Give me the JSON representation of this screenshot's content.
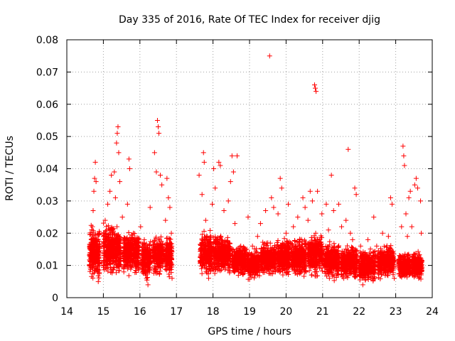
{
  "chart_data": {
    "type": "scatter",
    "title": "Day 335 of 2016, Rate Of TEC Index for receiver djig",
    "xlabel": "GPS time / hours",
    "ylabel": "ROTI / TECUs",
    "xlim": [
      14,
      24
    ],
    "ylim": [
      0,
      0.08
    ],
    "x_ticks": [
      "14",
      "15",
      "16",
      "17",
      "18",
      "19",
      "20",
      "21",
      "22",
      "23",
      "24"
    ],
    "y_ticks": [
      "0",
      "0.01",
      "0.02",
      "0.03",
      "0.04",
      "0.05",
      "0.06",
      "0.07",
      "0.08"
    ],
    "grid": true,
    "marker": "+",
    "color": "#ff0000",
    "series": [
      {
        "name": "ROTI",
        "points": [
          [
            14.62,
            0.01
          ],
          [
            14.65,
            0.014
          ],
          [
            14.68,
            0.018
          ],
          [
            14.7,
            0.022
          ],
          [
            14.72,
            0.027
          ],
          [
            14.74,
            0.033
          ],
          [
            14.76,
            0.037
          ],
          [
            14.78,
            0.042
          ],
          [
            14.8,
            0.036
          ],
          [
            14.82,
            0.012
          ],
          [
            14.84,
            0.008
          ],
          [
            14.86,
            0.005
          ],
          [
            14.88,
            0.016
          ],
          [
            14.9,
            0.02
          ],
          [
            14.95,
            0.011
          ],
          [
            15.0,
            0.019
          ],
          [
            15.05,
            0.024
          ],
          [
            15.08,
            0.009
          ],
          [
            15.12,
            0.029
          ],
          [
            15.15,
            0.015
          ],
          [
            15.18,
            0.033
          ],
          [
            15.22,
            0.038
          ],
          [
            15.26,
            0.021
          ],
          [
            15.3,
            0.039
          ],
          [
            15.33,
            0.031
          ],
          [
            15.36,
            0.048
          ],
          [
            15.38,
            0.051
          ],
          [
            15.4,
            0.053
          ],
          [
            15.42,
            0.045
          ],
          [
            15.45,
            0.036
          ],
          [
            15.48,
            0.012
          ],
          [
            15.52,
            0.025
          ],
          [
            15.56,
            0.008
          ],
          [
            15.62,
            0.018
          ],
          [
            15.66,
            0.029
          ],
          [
            15.7,
            0.043
          ],
          [
            15.72,
            0.04
          ],
          [
            15.76,
            0.014
          ],
          [
            15.82,
            0.02
          ],
          [
            15.88,
            0.01
          ],
          [
            15.95,
            0.016
          ],
          [
            16.02,
            0.022
          ],
          [
            16.08,
            0.013
          ],
          [
            16.12,
            0.018
          ],
          [
            16.18,
            0.006
          ],
          [
            16.22,
            0.004
          ],
          [
            16.28,
            0.028
          ],
          [
            16.35,
            0.014
          ],
          [
            16.4,
            0.045
          ],
          [
            16.45,
            0.039
          ],
          [
            16.48,
            0.055
          ],
          [
            16.5,
            0.053
          ],
          [
            16.52,
            0.051
          ],
          [
            16.56,
            0.038
          ],
          [
            16.6,
            0.035
          ],
          [
            16.64,
            0.012
          ],
          [
            16.7,
            0.024
          ],
          [
            16.74,
            0.037
          ],
          [
            16.78,
            0.031
          ],
          [
            16.82,
            0.028
          ],
          [
            16.86,
            0.02
          ],
          [
            16.88,
            0.006
          ],
          [
            17.62,
            0.038
          ],
          [
            17.66,
            0.015
          ],
          [
            17.7,
            0.032
          ],
          [
            17.74,
            0.045
          ],
          [
            17.76,
            0.042
          ],
          [
            17.8,
            0.024
          ],
          [
            17.84,
            0.019
          ],
          [
            17.88,
            0.006
          ],
          [
            17.92,
            0.015
          ],
          [
            17.98,
            0.029
          ],
          [
            18.02,
            0.04
          ],
          [
            18.06,
            0.034
          ],
          [
            18.1,
            0.018
          ],
          [
            18.16,
            0.042
          ],
          [
            18.2,
            0.041
          ],
          [
            18.26,
            0.013
          ],
          [
            18.3,
            0.027
          ],
          [
            18.36,
            0.016
          ],
          [
            18.42,
            0.03
          ],
          [
            18.48,
            0.036
          ],
          [
            18.52,
            0.044
          ],
          [
            18.56,
            0.039
          ],
          [
            18.6,
            0.023
          ],
          [
            18.66,
            0.044
          ],
          [
            18.7,
            0.008
          ],
          [
            18.76,
            0.016
          ],
          [
            18.82,
            0.012
          ],
          [
            18.9,
            0.014
          ],
          [
            18.96,
            0.025
          ],
          [
            19.02,
            0.01
          ],
          [
            19.08,
            0.016
          ],
          [
            19.14,
            0.008
          ],
          [
            19.22,
            0.019
          ],
          [
            19.3,
            0.023
          ],
          [
            19.36,
            0.013
          ],
          [
            19.44,
            0.027
          ],
          [
            19.5,
            0.017
          ],
          [
            19.55,
            0.075
          ],
          [
            19.6,
            0.031
          ],
          [
            19.66,
            0.028
          ],
          [
            19.72,
            0.015
          ],
          [
            19.78,
            0.026
          ],
          [
            19.84,
            0.037
          ],
          [
            19.88,
            0.034
          ],
          [
            19.94,
            0.012
          ],
          [
            20.0,
            0.02
          ],
          [
            20.06,
            0.029
          ],
          [
            20.12,
            0.017
          ],
          [
            20.2,
            0.022
          ],
          [
            20.26,
            0.013
          ],
          [
            20.32,
            0.025
          ],
          [
            20.38,
            0.018
          ],
          [
            20.46,
            0.031
          ],
          [
            20.52,
            0.028
          ],
          [
            20.6,
            0.024
          ],
          [
            20.66,
            0.033
          ],
          [
            20.72,
            0.03
          ],
          [
            20.78,
            0.066
          ],
          [
            20.8,
            0.065
          ],
          [
            20.82,
            0.064
          ],
          [
            20.86,
            0.033
          ],
          [
            20.92,
            0.018
          ],
          [
            20.98,
            0.026
          ],
          [
            21.04,
            0.015
          ],
          [
            21.1,
            0.029
          ],
          [
            21.16,
            0.021
          ],
          [
            21.24,
            0.038
          ],
          [
            21.3,
            0.027
          ],
          [
            21.36,
            0.014
          ],
          [
            21.44,
            0.029
          ],
          [
            21.52,
            0.022
          ],
          [
            21.58,
            0.012
          ],
          [
            21.64,
            0.024
          ],
          [
            21.7,
            0.046
          ],
          [
            21.76,
            0.02
          ],
          [
            21.82,
            0.018
          ],
          [
            21.88,
            0.034
          ],
          [
            21.92,
            0.032
          ],
          [
            21.98,
            0.01
          ],
          [
            22.04,
            0.016
          ],
          [
            22.1,
            0.004
          ],
          [
            22.16,
            0.014
          ],
          [
            22.24,
            0.018
          ],
          [
            22.32,
            0.009
          ],
          [
            22.4,
            0.025
          ],
          [
            22.48,
            0.016
          ],
          [
            22.56,
            0.012
          ],
          [
            22.64,
            0.02
          ],
          [
            22.72,
            0.013
          ],
          [
            22.8,
            0.019
          ],
          [
            22.86,
            0.031
          ],
          [
            22.9,
            0.029
          ],
          [
            22.96,
            0.006
          ],
          [
            23.1,
            0.012
          ],
          [
            23.16,
            0.022
          ],
          [
            23.2,
            0.047
          ],
          [
            23.22,
            0.044
          ],
          [
            23.24,
            0.041
          ],
          [
            23.28,
            0.026
          ],
          [
            23.32,
            0.019
          ],
          [
            23.36,
            0.031
          ],
          [
            23.4,
            0.033
          ],
          [
            23.44,
            0.022
          ],
          [
            23.48,
            0.01
          ],
          [
            23.52,
            0.035
          ],
          [
            23.56,
            0.037
          ],
          [
            23.6,
            0.034
          ],
          [
            23.64,
            0.012
          ],
          [
            23.68,
            0.03
          ],
          [
            23.7,
            0.02
          ]
        ],
        "clusters": [
          [
            14.62,
            14.9,
            0.005,
            0.023,
            280
          ],
          [
            15.0,
            15.48,
            0.006,
            0.024,
            430
          ],
          [
            15.55,
            15.98,
            0.006,
            0.022,
            360
          ],
          [
            16.05,
            16.3,
            0.005,
            0.019,
            200
          ],
          [
            16.35,
            16.65,
            0.006,
            0.02,
            240
          ],
          [
            16.7,
            16.88,
            0.006,
            0.02,
            170
          ],
          [
            17.65,
            17.98,
            0.005,
            0.022,
            270
          ],
          [
            18.0,
            18.48,
            0.006,
            0.021,
            380
          ],
          [
            18.52,
            18.9,
            0.006,
            0.017,
            300
          ],
          [
            18.92,
            19.28,
            0.005,
            0.016,
            260
          ],
          [
            19.3,
            19.72,
            0.006,
            0.018,
            340
          ],
          [
            19.75,
            20.1,
            0.006,
            0.019,
            300
          ],
          [
            20.15,
            20.55,
            0.006,
            0.019,
            330
          ],
          [
            20.6,
            21.0,
            0.006,
            0.021,
            340
          ],
          [
            21.05,
            21.45,
            0.005,
            0.018,
            330
          ],
          [
            21.5,
            21.95,
            0.005,
            0.017,
            340
          ],
          [
            22.0,
            22.45,
            0.004,
            0.016,
            330
          ],
          [
            22.5,
            22.95,
            0.005,
            0.017,
            330
          ],
          [
            23.08,
            23.4,
            0.005,
            0.015,
            260
          ],
          [
            23.45,
            23.72,
            0.005,
            0.015,
            220
          ]
        ]
      }
    ]
  }
}
